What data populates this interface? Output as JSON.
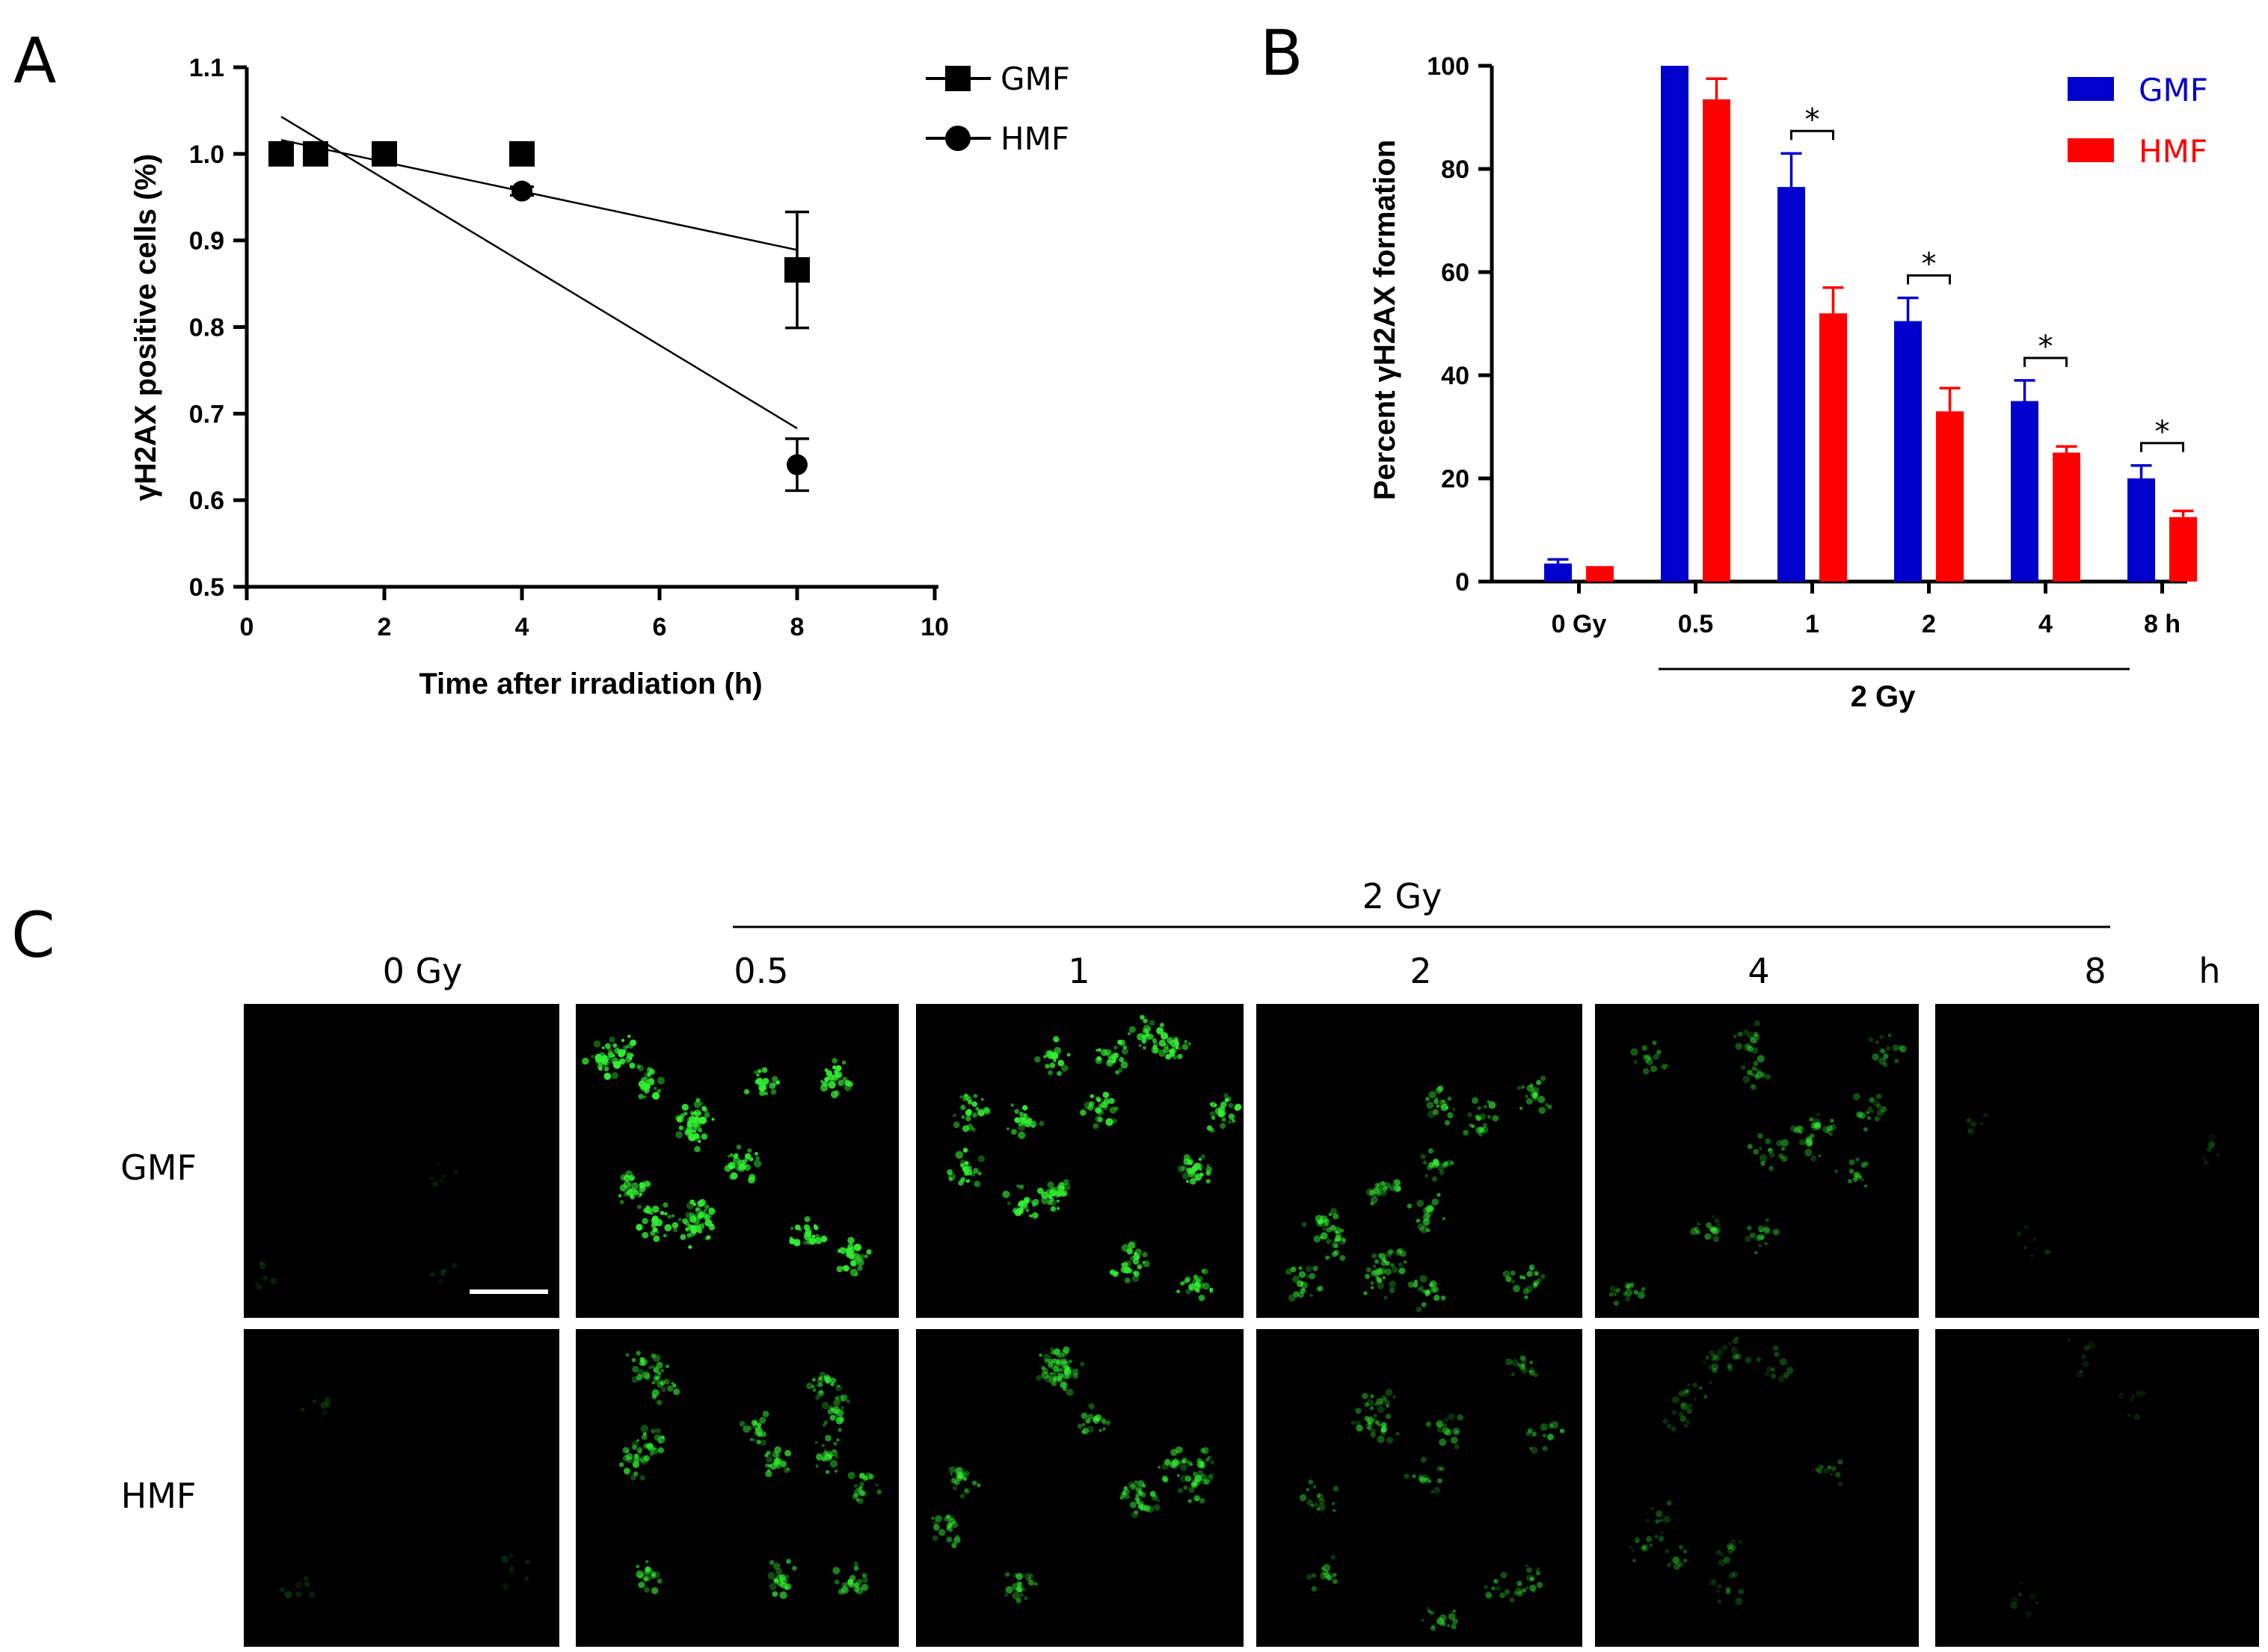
{
  "panels": {
    "a_letter": "A",
    "b_letter": "B",
    "c_letter": "C"
  },
  "chart_data": [
    {
      "id": "A",
      "type": "scatter",
      "xlabel": "Time after irradiation (h)",
      "ylabel": "γH2AX positive cells (%)",
      "xlim": [
        0,
        10
      ],
      "ylim": [
        0.5,
        1.1
      ],
      "xticks": [
        "0",
        "2",
        "4",
        "6",
        "8",
        "10"
      ],
      "yticks": [
        "0.5",
        "0.6",
        "0.7",
        "0.8",
        "0.9",
        "1.0",
        "1.1"
      ],
      "legend": "top-right",
      "grid": false,
      "series": [
        {
          "name": "GMF",
          "marker": "square",
          "x": [
            0.5,
            1,
            2,
            4,
            8
          ],
          "y": [
            1.0,
            1.0,
            1.0,
            1.0,
            0.866
          ],
          "err": [
            0,
            0,
            0,
            0,
            0.067
          ],
          "fit": [
            [
              0.5,
              1.016
            ],
            [
              8,
              0.889
            ]
          ]
        },
        {
          "name": "HMF",
          "marker": "circle",
          "x": [
            0.5,
            1,
            2,
            4,
            8
          ],
          "y": [
            1.0,
            1.0,
            1.0,
            0.957,
            0.641
          ],
          "err": [
            0,
            0,
            0,
            0.005,
            0.03
          ],
          "fit": [
            [
              0.5,
              1.043
            ],
            [
              8,
              0.683
            ]
          ]
        }
      ]
    },
    {
      "id": "B",
      "type": "bar",
      "ylabel": "Percent γH2AX formation",
      "ylim": [
        0,
        100
      ],
      "yticks": [
        "0",
        "20",
        "40",
        "60",
        "80",
        "100"
      ],
      "categories": [
        "0 Gy",
        "0.5",
        "1",
        "2",
        "4",
        "8 h"
      ],
      "group_label": "2 Gy",
      "legend": "top-right",
      "grid": false,
      "series": [
        {
          "name": "GMF",
          "color": "#0000cc",
          "values": [
            3.5,
            100,
            76.5,
            50.5,
            35,
            20
          ],
          "err": [
            0.8,
            0,
            6.5,
            4.5,
            4,
            2.5
          ]
        },
        {
          "name": "HMF",
          "color": "#ff0000",
          "values": [
            3,
            93.5,
            52,
            33,
            25,
            12.5
          ],
          "err": [
            0,
            4,
            5,
            4.5,
            1.2,
            1.2
          ]
        }
      ],
      "significance": [
        {
          "category": 2,
          "label": "*"
        },
        {
          "category": 3,
          "label": "*"
        },
        {
          "category": 4,
          "label": "*"
        },
        {
          "category": 5,
          "label": "*"
        }
      ]
    }
  ],
  "panel_c": {
    "top_label": "2 Gy",
    "columns": [
      "0 Gy",
      "0.5",
      "1",
      "2",
      "4",
      "8"
    ],
    "unit": "h",
    "rows": [
      "GMF",
      "HMF"
    ],
    "intensity": [
      [
        0.0,
        1.0,
        0.95,
        0.65,
        0.45,
        0.04
      ],
      [
        0.06,
        0.7,
        0.62,
        0.42,
        0.22,
        0.05
      ]
    ]
  }
}
